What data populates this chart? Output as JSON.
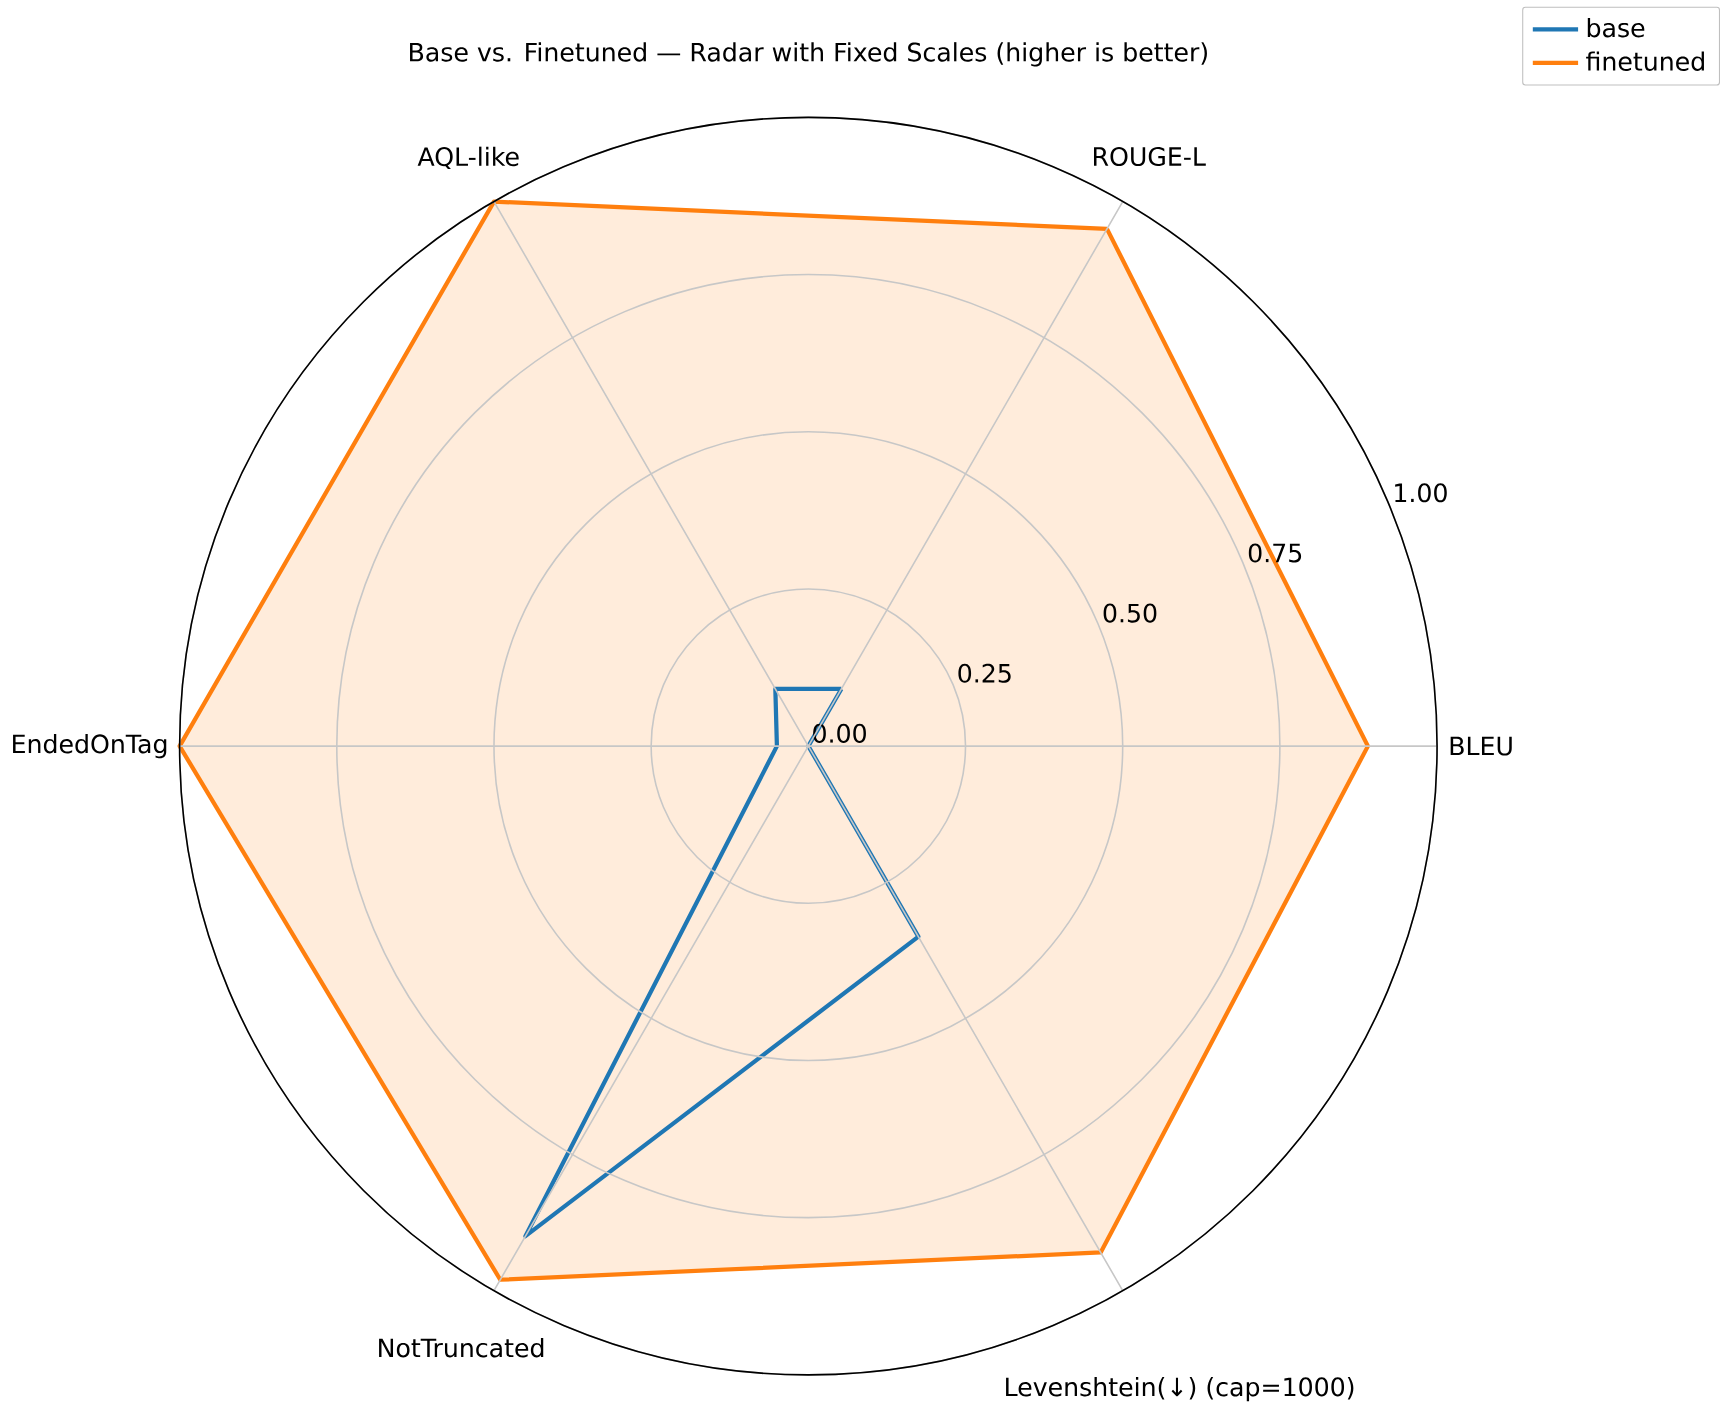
{
  "chart_data": {
    "type": "radar",
    "title": "Base vs. Finetuned — Radar with Fixed Scales (higher is better)",
    "categories": [
      "ROUGE-L",
      "BLEU",
      "Levenshtein(↓) (cap=1000)",
      "NotTruncated",
      "EndedOnTag",
      "AQL-like"
    ],
    "series": [
      {
        "name": "base",
        "color": "#1f77b4",
        "values": [
          0.105,
          0.0,
          0.35,
          0.9,
          0.05,
          0.105
        ]
      },
      {
        "name": "finetuned",
        "color": "#ff7f0e",
        "values": [
          0.95,
          0.89,
          0.93,
          0.98,
          1.0,
          1.0
        ]
      }
    ],
    "ylim": [
      0,
      1
    ],
    "yticks": [
      {
        "value": 0,
        "label": "0.00"
      },
      {
        "value": 0.25,
        "label": "0.25"
      },
      {
        "value": 0.5,
        "label": "0.50"
      },
      {
        "value": 0.75,
        "label": "0.75"
      },
      {
        "value": 1.0,
        "label": "1.00"
      }
    ],
    "grid": true,
    "legend": "top right"
  }
}
